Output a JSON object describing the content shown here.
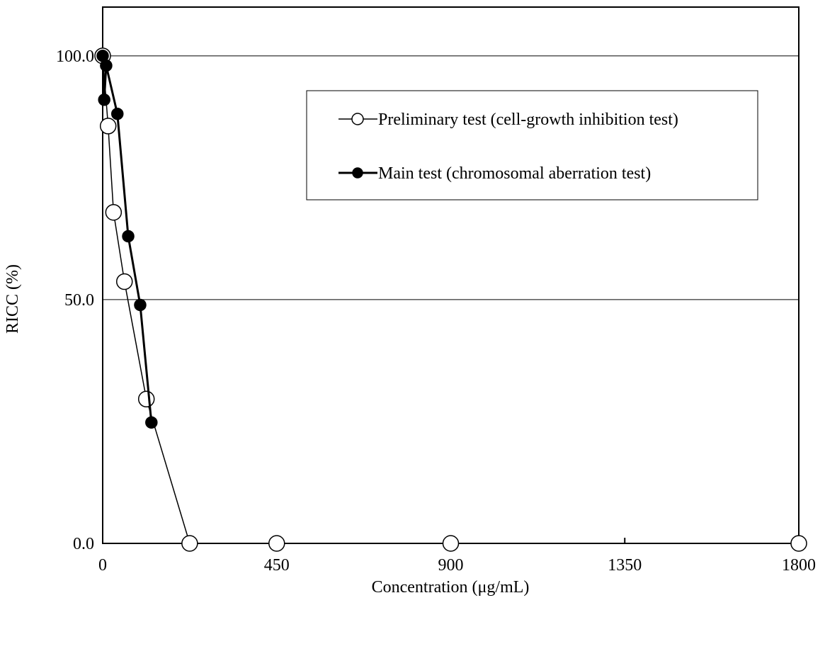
{
  "chart_data": {
    "type": "line",
    "x_label": "Concentration (μg/mL)",
    "y_label": "RICC (%)",
    "xlim": [
      0,
      1800
    ],
    "xticks": [
      0,
      450,
      900,
      1350,
      1800
    ],
    "ylim": [
      0,
      110
    ],
    "yticks": [
      {
        "value": 0,
        "label": "0.0"
      },
      {
        "value": 50,
        "label": "50.0"
      },
      {
        "value": 100,
        "label": "100.0"
      }
    ],
    "grid": true,
    "legend": "upper right",
    "series": [
      {
        "name": "Preliminary test (cell-growth inhibition test)",
        "color": "#000000",
        "marker": "open",
        "line_width": 1.5,
        "x": [
          0,
          14.1,
          28.1,
          56.3,
          113,
          225,
          450,
          900,
          1800
        ],
        "values": [
          100,
          85.6,
          67.9,
          53.7,
          29.6,
          0,
          0,
          0,
          0
        ]
      },
      {
        "name": "Main test (chromosomal aberration test)",
        "color": "#000000",
        "marker": "filled",
        "line_width": 3,
        "x": [
          0,
          4,
          9,
          38,
          66,
          97,
          126
        ],
        "values": [
          100,
          91,
          98,
          88.1,
          63,
          48.9,
          24.8
        ]
      }
    ]
  }
}
